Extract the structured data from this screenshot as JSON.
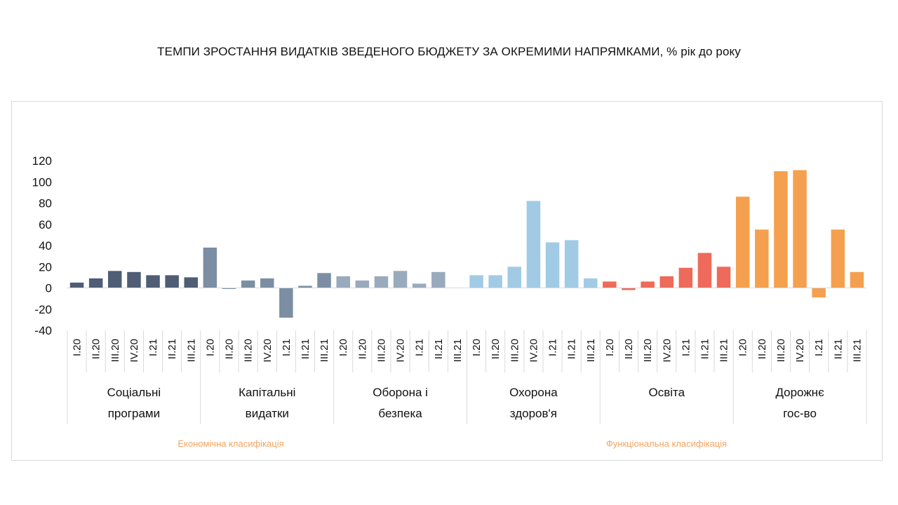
{
  "title": "ТЕМПИ ЗРОСТАННЯ ВИДАТКІВ ЗВЕДЕНОГО БЮДЖЕТУ ЗА ОКРЕМИМИ  НАПРЯМКАМИ, % рік до року",
  "classifications": [
    {
      "label": "Економічна класифікація",
      "color": "#f4a460"
    },
    {
      "label": "Функціональна класифікація",
      "color": "#f4a460"
    }
  ],
  "chart_data": {
    "type": "bar",
    "title": "ТЕМПИ ЗРОСТАННЯ ВИДАТКІВ ЗВЕДЕНОГО БЮДЖЕТУ ЗА ОКРЕМИМИ  НАПРЯМКАМИ, % рік до року",
    "xlabel": "",
    "ylabel": "",
    "ylim": [
      -40,
      120
    ],
    "yticks": [
      -40,
      -20,
      0,
      20,
      40,
      60,
      80,
      100,
      120
    ],
    "grid": false,
    "legend": "none",
    "categories": [
      "I.20",
      "II.20",
      "III.20",
      "IV.20",
      "I.21",
      "II.21",
      "III.21"
    ],
    "groups": [
      {
        "label": [
          "Соціальні",
          "програми"
        ],
        "color": "#4f5d75",
        "values": [
          5,
          9,
          16,
          15,
          12,
          12,
          10
        ]
      },
      {
        "label": [
          "Капітальні",
          "видатки"
        ],
        "color": "#7b8ea3",
        "values": [
          38,
          -1,
          7,
          9,
          -28,
          2,
          14
        ]
      },
      {
        "label": [
          "Оборона і",
          "безпека"
        ],
        "color": "#9aaabd",
        "values": [
          11,
          7,
          11,
          16,
          4,
          15,
          null
        ]
      },
      {
        "label": [
          "Охорона",
          "здоров'я"
        ],
        "color": "#a1cbe5",
        "values": [
          12,
          12,
          20,
          82,
          43,
          45,
          9
        ]
      },
      {
        "label": [
          "Освіта"
        ],
        "color": "#ee6a5a",
        "values": [
          6,
          -2,
          6,
          11,
          19,
          33,
          20
        ]
      },
      {
        "label": [
          "Дорожнє",
          "гос-во"
        ],
        "color": "#f4a04e",
        "values": [
          86,
          55,
          110,
          111,
          -9,
          55,
          15
        ]
      }
    ]
  }
}
